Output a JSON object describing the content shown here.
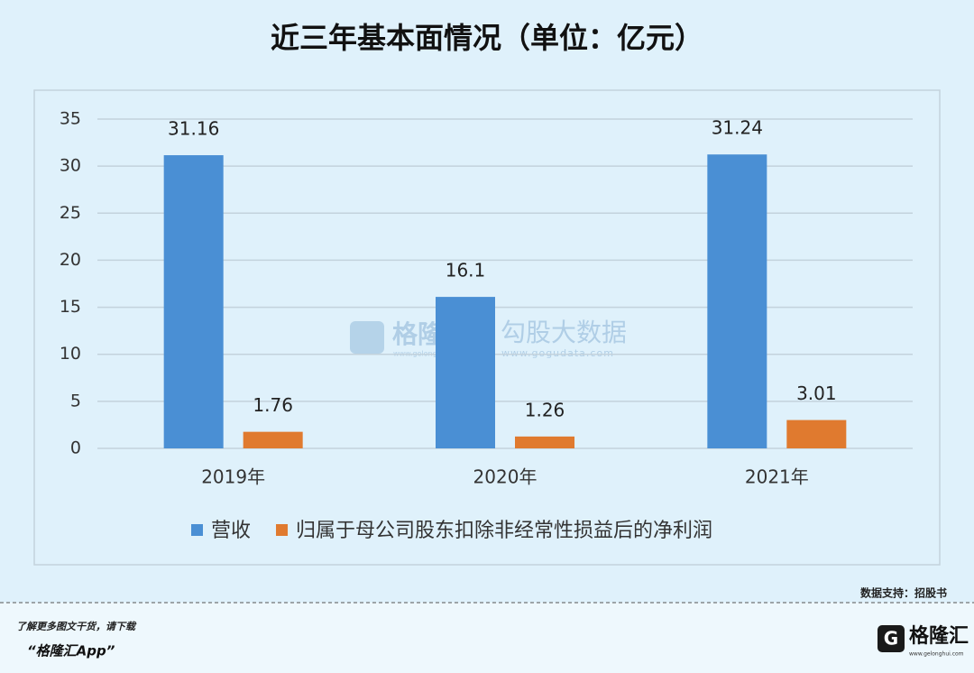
{
  "chart_data": {
    "type": "bar",
    "title": "近三年基本面情况（单位：亿元）",
    "categories": [
      "2019年",
      "2020年",
      "2021年"
    ],
    "series": [
      {
        "name": "营收",
        "color": "#4a8fd4",
        "values": [
          31.16,
          16.1,
          31.24
        ]
      },
      {
        "name": "归属于母公司股东扣除非经常性损益后的净利润",
        "color": "#e07a2f",
        "values": [
          1.76,
          1.26,
          3.01
        ]
      }
    ],
    "ylim": [
      0,
      35
    ],
    "yticks": [
      0,
      5,
      10,
      15,
      20,
      25,
      30,
      35
    ],
    "grid": true,
    "legend": "bottom"
  },
  "watermark": {
    "brand": "格隆汇",
    "brand_url": "www.gelonghui.com",
    "name": "勾股大数据",
    "name_url": "www.gogudata.com"
  },
  "footer": {
    "source": "数据支持：招股书",
    "promo": "了解更多图文干货，请下载",
    "app": "“格隆汇App”",
    "logo": "格隆汇",
    "logo_url": "www.gelonghui.com"
  }
}
